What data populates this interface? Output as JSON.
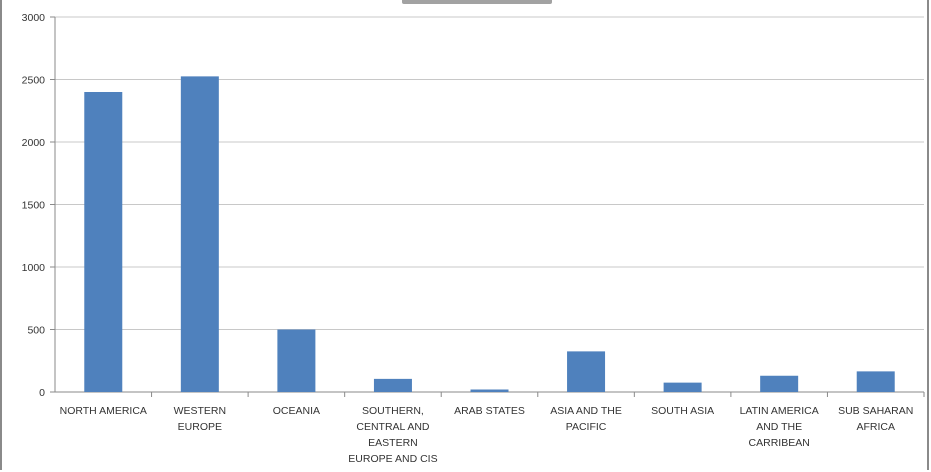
{
  "chart_data": {
    "type": "bar",
    "title": "",
    "xlabel": "",
    "ylabel": "",
    "ylim": [
      0,
      3000
    ],
    "yticks": [
      0,
      500,
      1000,
      1500,
      2000,
      2500,
      3000
    ],
    "grid": true,
    "legend": "none",
    "bar_color": "#4f81bd",
    "categories": [
      [
        "NORTH AMERICA"
      ],
      [
        "WESTERN",
        "EUROPE"
      ],
      [
        "OCEANIA"
      ],
      [
        "SOUTHERN,",
        "CENTRAL AND",
        "EASTERN",
        "EUROPE AND CIS"
      ],
      [
        "ARAB STATES"
      ],
      [
        "ASIA AND THE",
        "PACIFIC"
      ],
      [
        "SOUTH ASIA"
      ],
      [
        "LATIN AMERICA",
        "AND THE",
        "CARRIBEAN"
      ],
      [
        "SUB SAHARAN",
        "AFRICA"
      ]
    ],
    "values": [
      2400,
      2525,
      500,
      105,
      20,
      325,
      75,
      130,
      165
    ]
  }
}
